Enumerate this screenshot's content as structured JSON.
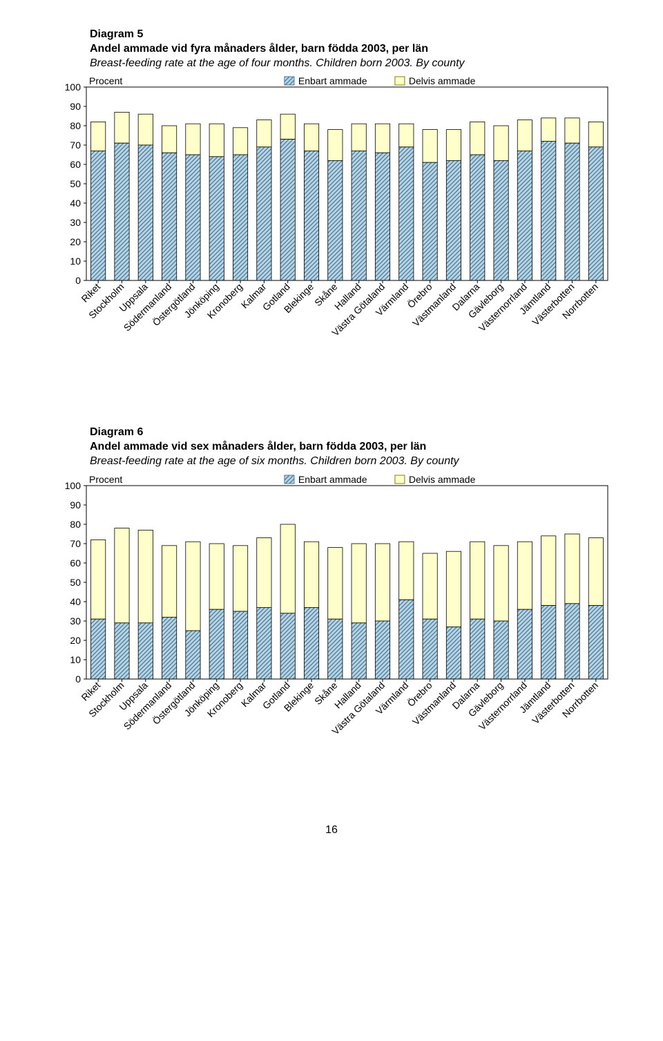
{
  "page_number": "16",
  "chart5": {
    "title_line1": "Diagram 5",
    "title_line2": "Andel ammade vid fyra månaders ålder, barn födda 2003, per län",
    "subtitle": "Breast-feeding rate at the age of four months. Children born 2003. By county",
    "y_label": "Procent",
    "legend1": "Enbart ammade",
    "legend2": "Delvis ammade",
    "ylim": [
      0,
      100
    ],
    "ytick_step": 10,
    "categories": [
      "Riket",
      "Stockholm",
      "Uppsala",
      "Södermanland",
      "Östergötland",
      "Jönköping",
      "Kronoberg",
      "Kalmar",
      "Gotland",
      "Blekinge",
      "Skåne",
      "Halland",
      "Västra Götaland",
      "Värmland",
      "Örebro",
      "Västmanland",
      "Dalarna",
      "Gävleborg",
      "Västernorrland",
      "Jämtland",
      "Västerbotten",
      "Norrbotten"
    ],
    "enbart": [
      67,
      71,
      70,
      66,
      65,
      64,
      65,
      69,
      73,
      67,
      62,
      67,
      66,
      69,
      61,
      62,
      65,
      62,
      67,
      72,
      71,
      69
    ],
    "delvis": [
      82,
      87,
      86,
      80,
      81,
      81,
      79,
      83,
      86,
      81,
      78,
      81,
      81,
      81,
      78,
      78,
      82,
      80,
      83,
      84,
      84,
      82
    ],
    "colors": {
      "enbart_fill": "#b8d4e3",
      "enbart_stroke": "#4a7a9a",
      "delvis_fill": "#ffffcc",
      "delvis_stroke": "#808000",
      "axis": "#000000",
      "grid": "#000000",
      "bg": "#ffffff"
    },
    "font_size_axis": 14,
    "font_size_title": 16
  },
  "chart6": {
    "title_line1": "Diagram 6",
    "title_line2": "Andel ammade vid sex månaders ålder, barn födda 2003, per län",
    "subtitle": "Breast-feeding rate at the age of six months. Children born 2003. By county",
    "y_label": "Procent",
    "legend1": "Enbart ammade",
    "legend2": "Delvis ammade",
    "ylim": [
      0,
      100
    ],
    "ytick_step": 10,
    "categories": [
      "Riket",
      "Stockholm",
      "Uppsala",
      "Södermanland",
      "Östergötland",
      "Jönköping",
      "Kronoberg",
      "Kalmar",
      "Gotland",
      "Blekinge",
      "Skåne",
      "Halland",
      "Västra Götaland",
      "Värmland",
      "Örebro",
      "Västmanland",
      "Dalarna",
      "Gävleborg",
      "Västernorrland",
      "Jämtland",
      "Västerbotten",
      "Norrbotten"
    ],
    "enbart": [
      31,
      29,
      29,
      32,
      25,
      36,
      35,
      37,
      34,
      37,
      31,
      29,
      30,
      41,
      31,
      27,
      31,
      30,
      36,
      38,
      39,
      38
    ],
    "delvis": [
      72,
      78,
      77,
      69,
      71,
      70,
      69,
      73,
      80,
      71,
      68,
      70,
      70,
      71,
      65,
      66,
      71,
      69,
      71,
      74,
      75,
      73
    ],
    "colors": {
      "enbart_fill": "#b8d4e3",
      "enbart_stroke": "#4a7a9a",
      "delvis_fill": "#ffffcc",
      "delvis_stroke": "#808000",
      "axis": "#000000",
      "grid": "#000000",
      "bg": "#ffffff"
    },
    "font_size_axis": 14,
    "font_size_title": 16
  }
}
